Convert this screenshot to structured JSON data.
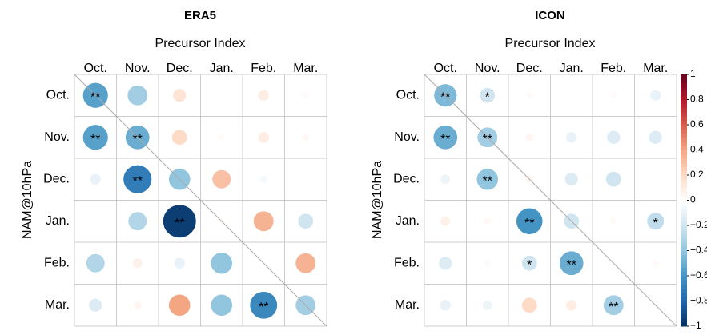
{
  "chart_data": [
    {
      "type": "corrplot",
      "title": "ERA5",
      "x_label": "Precursor Index",
      "y_label": "NAM@10hPa",
      "categories": [
        "Oct.",
        "Nov.",
        "Dec.",
        "Jan.",
        "Feb.",
        "Mar."
      ],
      "row_categories": [
        "Oct.",
        "Nov.",
        "Dec.",
        "Jan.",
        "Feb.",
        "Mar."
      ],
      "values": [
        [
          -0.55,
          -0.35,
          0.15,
          0,
          0.1,
          0.03
        ],
        [
          -0.55,
          -0.5,
          0.2,
          0.03,
          0.1,
          0.04
        ],
        [
          -0.1,
          -0.7,
          -0.4,
          0.3,
          -0.05,
          0
        ],
        [
          0,
          -0.3,
          -0.95,
          0.03,
          0.35,
          -0.2
        ],
        [
          -0.3,
          0.08,
          -0.1,
          -0.4,
          0,
          0.35
        ],
        [
          -0.15,
          0.05,
          0.4,
          -0.4,
          -0.65,
          -0.35
        ]
      ],
      "significance": [
        [
          "**",
          null,
          null,
          null,
          null,
          null
        ],
        [
          "**",
          "**",
          null,
          null,
          null,
          null
        ],
        [
          null,
          "**",
          null,
          null,
          null,
          null
        ],
        [
          null,
          null,
          "**",
          null,
          null,
          null
        ],
        [
          null,
          null,
          null,
          null,
          null,
          null
        ],
        [
          null,
          null,
          null,
          null,
          "**",
          null
        ]
      ],
      "colors": [
        "#053061",
        "#2166ac",
        "#4393c3",
        "#92c5de",
        "#d1e5f0",
        "#ffffff",
        "#fddbc7",
        "#f4a582",
        "#d6604d",
        "#b2182b",
        "#67001f"
      ]
    },
    {
      "type": "corrplot",
      "title": "ICON",
      "x_label": "Precursor Index",
      "y_label": "NAM@10hPa",
      "categories": [
        "Oct.",
        "Nov.",
        "Dec.",
        "Jan.",
        "Feb.",
        "Mar."
      ],
      "row_categories": [
        "Oct.",
        "Nov.",
        "Dec.",
        "Jan.",
        "Feb.",
        "Mar."
      ],
      "values": [
        [
          -0.45,
          -0.2,
          0.03,
          0,
          0.03,
          -0.1
        ],
        [
          -0.5,
          -0.35,
          0.05,
          -0.1,
          -0.15,
          -0.15
        ],
        [
          -0.08,
          -0.4,
          0.05,
          -0.15,
          -0.2,
          0
        ],
        [
          0.08,
          0.04,
          -0.6,
          -0.2,
          0.03,
          -0.25
        ],
        [
          -0.15,
          0.03,
          -0.2,
          -0.5,
          0,
          0.03
        ],
        [
          -0.1,
          -0.08,
          0.2,
          0.1,
          -0.35,
          0
        ]
      ],
      "significance": [
        [
          "**",
          "*",
          null,
          null,
          null,
          null
        ],
        [
          "**",
          "**",
          null,
          null,
          null,
          null
        ],
        [
          null,
          "**",
          null,
          null,
          null,
          null
        ],
        [
          null,
          null,
          "**",
          null,
          null,
          "*"
        ],
        [
          null,
          null,
          "*",
          "**",
          null,
          null
        ],
        [
          null,
          null,
          null,
          null,
          "**",
          null
        ]
      ],
      "colors": [
        "#053061",
        "#2166ac",
        "#4393c3",
        "#92c5de",
        "#d1e5f0",
        "#ffffff",
        "#fddbc7",
        "#f4a582",
        "#d6604d",
        "#b2182b",
        "#67001f"
      ],
      "colorbar_lim": [
        -1,
        1
      ],
      "colorbar_ticks": [
        1,
        0.8,
        0.6,
        0.4,
        0.2,
        0,
        {
          "value": -0.2,
          "label": "−0.2"
        },
        {
          "value": -0.4,
          "label": "−0.4"
        },
        {
          "value": -0.6,
          "label": "−0.6"
        },
        {
          "value": -0.8,
          "label": "−0.8"
        },
        {
          "value": -1,
          "label": "−1"
        }
      ]
    }
  ]
}
